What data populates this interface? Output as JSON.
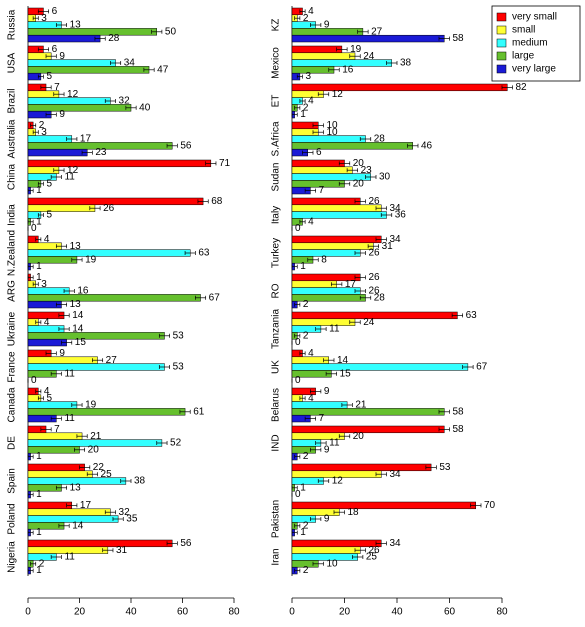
{
  "chart_data": [
    {
      "type": "bar",
      "orientation": "horizontal",
      "categories": [
        "Russia",
        "USA",
        "Brazil",
        "Australia",
        "China",
        "India",
        "N.Zealand",
        "ARG",
        "Ukraine",
        "France",
        "Canada",
        "DE",
        "Spain",
        "Poland",
        "Nigeria"
      ],
      "series": [
        {
          "color": "#ff0000",
          "values": [
            6,
            6,
            7,
            2,
            71,
            68,
            4,
            1,
            14,
            9,
            4,
            7,
            22,
            17,
            56
          ],
          "errors": [
            2,
            2,
            2,
            1,
            2,
            2,
            1,
            1,
            2,
            2,
            1,
            2,
            2,
            2,
            2
          ]
        },
        {
          "color": "#ffff33",
          "values": [
            3,
            9,
            12,
            3,
            12,
            26,
            13,
            3,
            4,
            27,
            5,
            21,
            25,
            32,
            31
          ],
          "errors": [
            1,
            2,
            2,
            1,
            2,
            2,
            2,
            1,
            1,
            2,
            1,
            2,
            2,
            2,
            2
          ]
        },
        {
          "color": "#33ffff",
          "values": [
            13,
            34,
            32,
            17,
            11,
            5,
            63,
            16,
            14,
            53,
            19,
            52,
            38,
            35,
            11
          ],
          "errors": [
            2,
            2,
            2,
            2,
            2,
            1,
            2,
            2,
            2,
            2,
            2,
            2,
            2,
            2,
            2
          ]
        },
        {
          "color": "#66c02e",
          "values": [
            50,
            47,
            40,
            56,
            5,
            1,
            19,
            67,
            53,
            11,
            61,
            20,
            13,
            14,
            2
          ],
          "errors": [
            2,
            2,
            2,
            2,
            1,
            1,
            2,
            2,
            2,
            2,
            2,
            2,
            2,
            2,
            1
          ]
        },
        {
          "color": "#1a1ad6",
          "values": [
            28,
            5,
            9,
            23,
            1,
            0,
            1,
            13,
            15,
            0,
            11,
            1,
            1,
            1,
            1
          ],
          "errors": [
            2,
            1,
            2,
            2,
            1,
            0,
            1,
            2,
            2,
            0,
            2,
            1,
            1,
            1,
            1
          ]
        }
      ],
      "xlim": [
        0,
        80
      ],
      "xticks": [
        0,
        20,
        40,
        60,
        80
      ]
    },
    {
      "type": "bar",
      "orientation": "horizontal",
      "categories": [
        "KZ",
        "Mexico",
        "ET",
        "S.Africa",
        "Sudan",
        "Italy",
        "Turkey",
        "RO",
        "Tanzania",
        "UK",
        "Belarus",
        "IND",
        null,
        "Pakistan",
        "Iran"
      ],
      "series": [
        {
          "name": "very small",
          "color": "#ff0000",
          "values": [
            4,
            19,
            82,
            10,
            20,
            26,
            34,
            26,
            63,
            4,
            9,
            58,
            53,
            70,
            34
          ],
          "errors": [
            1,
            2,
            2,
            2,
            2,
            2,
            2,
            2,
            2,
            1,
            2,
            2,
            2,
            2,
            2
          ]
        },
        {
          "name": "small",
          "color": "#ffff33",
          "values": [
            2,
            24,
            12,
            10,
            23,
            34,
            31,
            17,
            24,
            14,
            4,
            20,
            34,
            18,
            26
          ],
          "errors": [
            1,
            2,
            2,
            2,
            2,
            2,
            2,
            2,
            2,
            2,
            1,
            2,
            2,
            2,
            2
          ]
        },
        {
          "name": "medium",
          "color": "#33ffff",
          "values": [
            9,
            38,
            4,
            28,
            30,
            36,
            26,
            26,
            11,
            67,
            21,
            11,
            12,
            9,
            25
          ],
          "errors": [
            2,
            2,
            1,
            2,
            2,
            2,
            2,
            2,
            2,
            2,
            2,
            2,
            2,
            2,
            2
          ]
        },
        {
          "name": "large",
          "color": "#66c02e",
          "values": [
            27,
            16,
            2,
            46,
            20,
            4,
            8,
            28,
            2,
            15,
            58,
            9,
            1,
            2,
            10
          ],
          "errors": [
            2,
            2,
            1,
            2,
            2,
            1,
            2,
            2,
            1,
            2,
            2,
            2,
            1,
            1,
            2
          ]
        },
        {
          "name": "very large",
          "color": "#1a1ad6",
          "values": [
            58,
            3,
            1,
            6,
            7,
            0,
            1,
            2,
            0,
            0,
            7,
            2,
            0,
            1,
            2
          ],
          "errors": [
            2,
            1,
            1,
            2,
            2,
            0,
            1,
            1,
            0,
            0,
            2,
            1,
            0,
            1,
            1
          ]
        }
      ],
      "xlim": [
        0,
        80
      ],
      "xticks": [
        0,
        20,
        40,
        60,
        80
      ],
      "legend": "upper right"
    }
  ]
}
